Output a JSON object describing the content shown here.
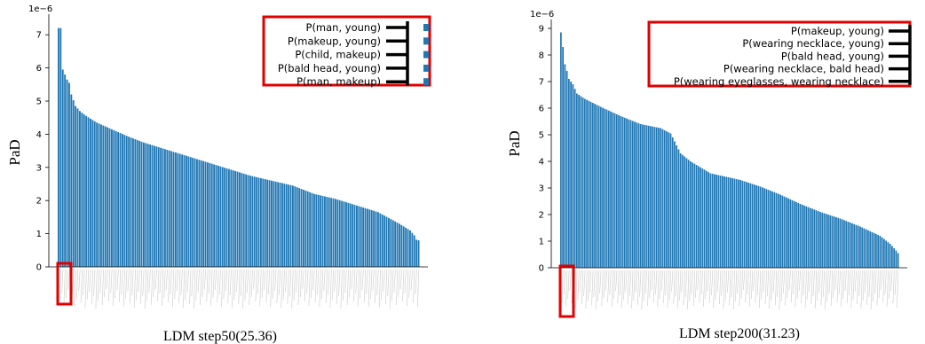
{
  "charts": [
    {
      "caption": "LDM step50(25.36)",
      "ylabel": "PaD",
      "sci": "1e−6",
      "yticks": [
        "0",
        "1",
        "2",
        "3",
        "4",
        "5",
        "6",
        "7"
      ],
      "legend": [
        "P(man, young)",
        "P(makeup, young)",
        "P(child, makeup)",
        "P(bald head, young)",
        "P(man, makeup)"
      ]
    },
    {
      "caption": "LDM step200(31.23)",
      "ylabel": "PaD",
      "sci": "1e−6",
      "yticks": [
        "0",
        "1",
        "2",
        "3",
        "4",
        "5",
        "6",
        "7",
        "8",
        "9"
      ],
      "legend": [
        "P(makeup, young)",
        "P(wearing necklace, young)",
        "P(bald head, young)",
        "P(wearing necklace, bald head)",
        "P(wearing eyeglasses, wearing necklace)"
      ]
    }
  ],
  "chart_data": [
    {
      "type": "bar",
      "title": "LDM step50(25.36)",
      "ylabel": "PaD",
      "y_scale_multiplier": "1e-6",
      "ylim": [
        0,
        7.6
      ],
      "bar_color": "#1f77b4",
      "highlight_color": "#e00000",
      "num_bars": 170,
      "sorted": "descending",
      "anchors": [
        [
          0,
          7.2
        ],
        [
          1,
          7.2
        ],
        [
          2,
          5.95
        ],
        [
          3,
          5.8
        ],
        [
          4,
          5.65
        ],
        [
          5,
          5.55
        ],
        [
          6,
          5.2
        ],
        [
          8,
          4.85
        ],
        [
          10,
          4.7
        ],
        [
          13,
          4.55
        ],
        [
          18,
          4.35
        ],
        [
          25,
          4.15
        ],
        [
          32,
          3.95
        ],
        [
          40,
          3.75
        ],
        [
          50,
          3.55
        ],
        [
          60,
          3.35
        ],
        [
          70,
          3.15
        ],
        [
          80,
          2.95
        ],
        [
          90,
          2.75
        ],
        [
          100,
          2.6
        ],
        [
          110,
          2.45
        ],
        [
          120,
          2.2
        ],
        [
          130,
          2.05
        ],
        [
          140,
          1.85
        ],
        [
          150,
          1.65
        ],
        [
          160,
          1.3
        ],
        [
          165,
          1.1
        ],
        [
          167,
          0.95
        ],
        [
          168,
          0.82
        ],
        [
          169,
          0.8
        ]
      ]
    },
    {
      "type": "bar",
      "title": "LDM step200(31.23)",
      "ylabel": "PaD",
      "y_scale_multiplier": "1e-6",
      "ylim": [
        0,
        9.3
      ],
      "bar_color": "#1f77b4",
      "highlight_color": "#e00000",
      "num_bars": 170,
      "sorted": "descending",
      "anchors": [
        [
          0,
          8.85
        ],
        [
          1,
          8.3
        ],
        [
          2,
          7.65
        ],
        [
          3,
          7.4
        ],
        [
          4,
          7.1
        ],
        [
          6,
          6.9
        ],
        [
          8,
          6.55
        ],
        [
          12,
          6.35
        ],
        [
          20,
          6.05
        ],
        [
          30,
          5.7
        ],
        [
          40,
          5.4
        ],
        [
          50,
          5.25
        ],
        [
          55,
          5.05
        ],
        [
          58,
          4.6
        ],
        [
          60,
          4.3
        ],
        [
          65,
          4.0
        ],
        [
          75,
          3.55
        ],
        [
          90,
          3.3
        ],
        [
          100,
          3.05
        ],
        [
          110,
          2.75
        ],
        [
          120,
          2.4
        ],
        [
          130,
          2.1
        ],
        [
          140,
          1.85
        ],
        [
          150,
          1.55
        ],
        [
          160,
          1.2
        ],
        [
          165,
          0.9
        ],
        [
          168,
          0.65
        ],
        [
          169,
          0.55
        ]
      ]
    }
  ]
}
